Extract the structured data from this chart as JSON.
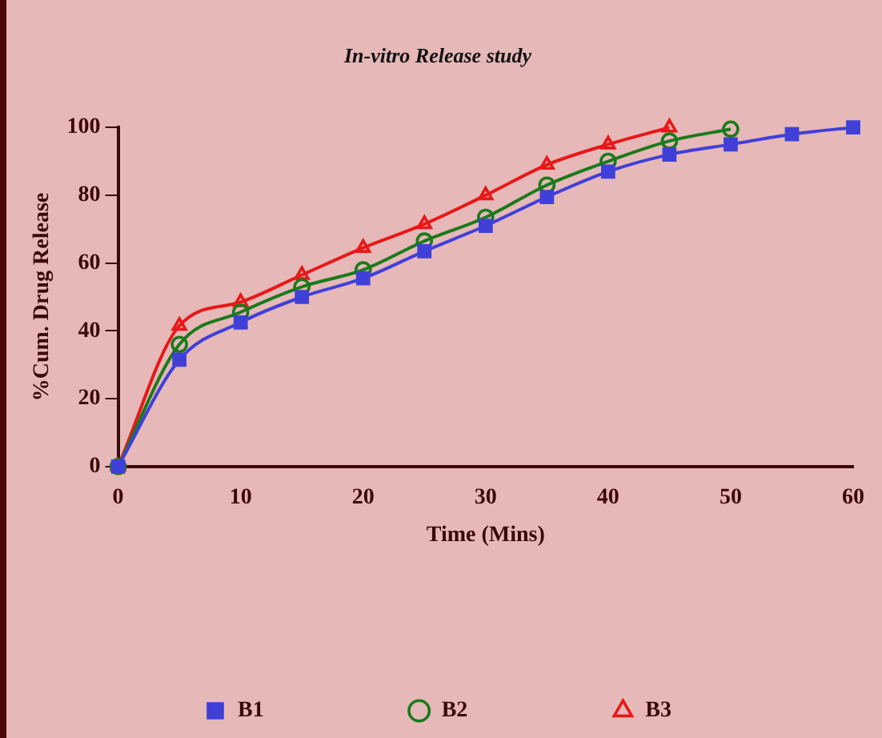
{
  "chart_data": {
    "type": "line",
    "title": "In-vitro Release study",
    "xlabel": "Time (Mins)",
    "ylabel": "%Cum. Drug Release",
    "xlim": [
      0,
      60
    ],
    "xticks": [
      0,
      10,
      20,
      30,
      40,
      50,
      60
    ],
    "ylim": [
      0,
      100
    ],
    "yticks": [
      0,
      20,
      40,
      60,
      80,
      100
    ],
    "grid": false,
    "legend": "bottom",
    "line_style": "solid",
    "series": [
      {
        "name": "B1",
        "color": "#4040d8",
        "marker": "square",
        "x": [
          0,
          5,
          10,
          15,
          20,
          25,
          30,
          35,
          40,
          45,
          50,
          55,
          60
        ],
        "values": [
          0,
          31.5,
          42.5,
          50,
          55.5,
          63.5,
          71,
          79.5,
          87,
          92,
          95,
          98,
          100
        ]
      },
      {
        "name": "B2",
        "color": "#1a7a1a",
        "marker": "circle",
        "x": [
          0,
          5,
          10,
          15,
          20,
          25,
          30,
          35,
          40,
          45,
          50
        ],
        "values": [
          0,
          36,
          45.5,
          53,
          58,
          66.5,
          73.5,
          83,
          90,
          96,
          99.5
        ]
      },
      {
        "name": "B3",
        "color": "#e81818",
        "marker": "triangle",
        "x": [
          0,
          5,
          10,
          15,
          20,
          25,
          30,
          35,
          40,
          45
        ],
        "values": [
          0,
          41.5,
          48.5,
          56.5,
          64.5,
          71.5,
          80,
          89,
          95,
          100
        ]
      }
    ]
  }
}
